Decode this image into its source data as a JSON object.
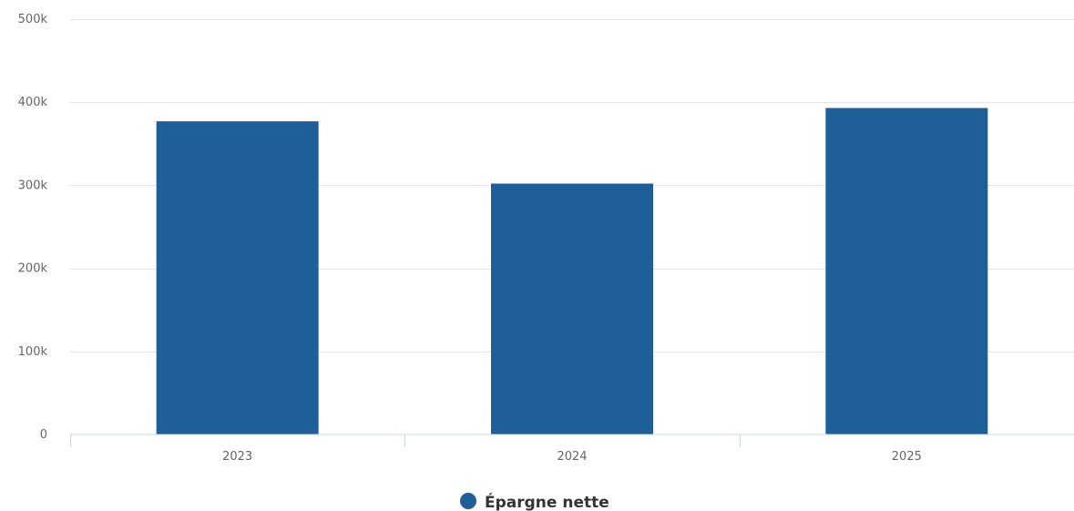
{
  "chart_data": {
    "type": "bar",
    "categories": [
      "2023",
      "2024",
      "2025"
    ],
    "series": [
      {
        "name": "Épargne nette",
        "values": [
          377000,
          302000,
          393000
        ],
        "color": "#1f5f99"
      }
    ],
    "y_ticks": [
      {
        "value": 0,
        "label": "0"
      },
      {
        "value": 100000,
        "label": "100k"
      },
      {
        "value": 200000,
        "label": "200k"
      },
      {
        "value": 300000,
        "label": "300k"
      },
      {
        "value": 400000,
        "label": "400k"
      },
      {
        "value": 500000,
        "label": "500k"
      }
    ],
    "ylim": [
      0,
      500000
    ],
    "title": "",
    "xlabel": "",
    "ylabel": "",
    "grid": true,
    "legend_position": "bottom-center"
  }
}
